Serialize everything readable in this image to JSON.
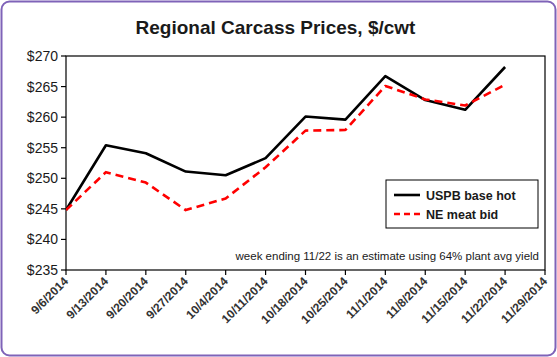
{
  "chart_data": {
    "type": "line",
    "title": "Regional Carcass Prices, $/cwt",
    "categories": [
      "9/6/2014",
      "9/13/2014",
      "9/20/2014",
      "9/27/2014",
      "10/4/2014",
      "10/11/2014",
      "10/18/2014",
      "10/25/2014",
      "11/1/2014",
      "11/8/2014",
      "11/15/2014",
      "11/22/2014",
      "11/29/2014"
    ],
    "series": [
      {
        "name": "USPB base hot",
        "color": "#000000",
        "line_style": "solid",
        "values": [
          244.8,
          255.4,
          254.1,
          251.1,
          250.5,
          253.3,
          260.1,
          259.6,
          266.7,
          262.8,
          261.2,
          268.2,
          null
        ]
      },
      {
        "name": "NE meat bid",
        "color": "#ff0000",
        "line_style": "dashed",
        "values": [
          244.8,
          251.0,
          249.3,
          244.8,
          246.7,
          251.8,
          257.8,
          257.9,
          265.1,
          262.9,
          261.9,
          265.3,
          null
        ]
      }
    ],
    "annotation": "week ending 11/22 is an estimate using 64% plant avg yield",
    "ylim": [
      235,
      270
    ],
    "yticks": [
      {
        "value": 235,
        "label": "$235"
      },
      {
        "value": 240,
        "label": "$240"
      },
      {
        "value": 245,
        "label": "$245"
      },
      {
        "value": 250,
        "label": "$250"
      },
      {
        "value": 255,
        "label": "$255"
      },
      {
        "value": 260,
        "label": "$260"
      },
      {
        "value": 265,
        "label": "$265"
      },
      {
        "value": 270,
        "label": "$270"
      }
    ],
    "grid": false,
    "legend": "right"
  }
}
